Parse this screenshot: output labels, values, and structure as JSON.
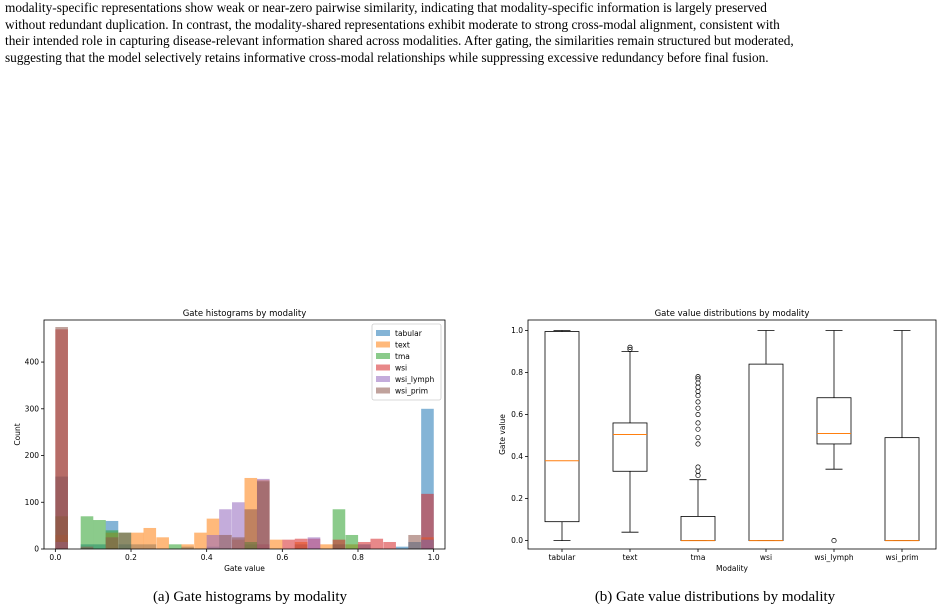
{
  "paragraph_lines": [
    "modality-specific representations show weak or near-zero pairwise similarity, indicating that modality-specific information is largely preserved",
    "without redundant duplication. In contrast, the modality-shared representations exhibit moderate to strong cross-modal alignment, consistent with",
    "their intended role in capturing disease-relevant information shared across modalities. After gating, the similarities remain structured but moderated,",
    "suggesting that the model selectively retains informative cross-modal relationships while suppressing excessive redundancy before final fusion."
  ],
  "captions": {
    "a": "(a) Gate histograms by modality",
    "b": "(b) Gate value distributions by modality"
  },
  "chart_data": [
    {
      "type": "bar",
      "subtype": "overlaid histogram",
      "title": "Gate histograms by modality",
      "xlabel": "Gate value",
      "ylabel": "Count",
      "xlim": [
        -0.03,
        1.03
      ],
      "ylim": [
        0,
        490
      ],
      "xticks": [
        "0.0",
        "0.2",
        "0.4",
        "0.6",
        "0.8",
        "1.0"
      ],
      "yticks": [
        "0",
        "100",
        "200",
        "300",
        "400"
      ],
      "legend_position": "top-right",
      "bin_width": 0.0333,
      "series": [
        {
          "name": "tabular",
          "color": "#1f77b4",
          "bins": [
            [
              0.0,
              155
            ],
            [
              0.067,
              10
            ],
            [
              0.1,
              10
            ],
            [
              0.133,
              60
            ],
            [
              0.167,
              10
            ],
            [
              0.2,
              10
            ],
            [
              0.233,
              10
            ],
            [
              0.333,
              5
            ],
            [
              0.4,
              5
            ],
            [
              0.5,
              10
            ],
            [
              0.633,
              10
            ],
            [
              0.733,
              10
            ],
            [
              0.8,
              10
            ],
            [
              0.9,
              5
            ],
            [
              0.933,
              15
            ],
            [
              0.967,
              300
            ]
          ]
        },
        {
          "name": "text",
          "color": "#ff7f0e",
          "bins": [
            [
              0.0,
              30
            ],
            [
              0.133,
              35
            ],
            [
              0.2,
              35
            ],
            [
              0.233,
              45
            ],
            [
              0.267,
              25
            ],
            [
              0.333,
              10
            ],
            [
              0.367,
              35
            ],
            [
              0.4,
              65
            ],
            [
              0.467,
              20
            ],
            [
              0.5,
              152
            ],
            [
              0.533,
              148
            ],
            [
              0.567,
              20
            ],
            [
              0.633,
              15
            ],
            [
              0.7,
              10
            ],
            [
              0.767,
              10
            ],
            [
              0.967,
              25
            ]
          ]
        },
        {
          "name": "tma",
          "color": "#2ca02c",
          "bins": [
            [
              0.0,
              70
            ],
            [
              0.067,
              70
            ],
            [
              0.1,
              62
            ],
            [
              0.133,
              40
            ],
            [
              0.167,
              35
            ],
            [
              0.3,
              10
            ],
            [
              0.5,
              15
            ],
            [
              0.733,
              85
            ],
            [
              0.767,
              30
            ],
            [
              0.967,
              20
            ]
          ]
        },
        {
          "name": "wsi",
          "color": "#d62728",
          "bins": [
            [
              0.0,
              470
            ],
            [
              0.533,
              10
            ],
            [
              0.6,
              20
            ],
            [
              0.633,
              22
            ],
            [
              0.667,
              22
            ],
            [
              0.733,
              20
            ],
            [
              0.8,
              15
            ],
            [
              0.833,
              22
            ],
            [
              0.867,
              15
            ],
            [
              0.967,
              118
            ]
          ]
        },
        {
          "name": "wsi_lymph",
          "color": "#9467bd",
          "bins": [
            [
              0.0,
              15
            ],
            [
              0.4,
              30
            ],
            [
              0.433,
              85
            ],
            [
              0.467,
              100
            ],
            [
              0.533,
              150
            ],
            [
              0.667,
              25
            ],
            [
              0.967,
              20
            ]
          ]
        },
        {
          "name": "wsi_prim",
          "color": "#8c564b",
          "bins": [
            [
              0.0,
              475
            ],
            [
              0.067,
              5
            ],
            [
              0.133,
              25
            ],
            [
              0.167,
              35
            ],
            [
              0.433,
              30
            ],
            [
              0.467,
              25
            ],
            [
              0.5,
              85
            ],
            [
              0.533,
              145
            ],
            [
              0.933,
              30
            ]
          ]
        }
      ]
    },
    {
      "type": "boxplot",
      "title": "Gate value distributions by modality",
      "xlabel": "Modality",
      "ylabel": "Gate value",
      "ylim": [
        -0.04,
        1.05
      ],
      "yticks": [
        "0.0",
        "0.2",
        "0.4",
        "0.6",
        "0.8",
        "1.0"
      ],
      "categories": [
        "tabular",
        "text",
        "tma",
        "wsi",
        "wsi_lymph",
        "wsi_prim"
      ],
      "boxes": [
        {
          "whisker_low": 0.0,
          "q1": 0.09,
          "median": 0.38,
          "q3": 0.995,
          "whisker_high": 1.0,
          "outliers": []
        },
        {
          "whisker_low": 0.04,
          "q1": 0.33,
          "median": 0.505,
          "q3": 0.56,
          "whisker_high": 0.9,
          "outliers": [
            0.91,
            0.92
          ]
        },
        {
          "whisker_low": 0.0,
          "q1": 0.0,
          "median": 0.0,
          "q3": 0.115,
          "whisker_high": 0.29,
          "outliers": [
            0.31,
            0.33,
            0.35,
            0.46,
            0.49,
            0.53,
            0.56,
            0.6,
            0.63,
            0.66,
            0.69,
            0.71,
            0.73,
            0.75,
            0.77,
            0.78
          ]
        },
        {
          "whisker_low": 0.0,
          "q1": 0.0,
          "median": 0.0,
          "q3": 0.84,
          "whisker_high": 1.0,
          "outliers": []
        },
        {
          "whisker_low": 0.34,
          "q1": 0.46,
          "median": 0.51,
          "q3": 0.68,
          "whisker_high": 1.0,
          "outliers": [
            0.0
          ]
        },
        {
          "whisker_low": 0.0,
          "q1": 0.0,
          "median": 0.0,
          "q3": 0.49,
          "whisker_high": 1.0,
          "outliers": []
        }
      ],
      "median_color": "#ff7f0e"
    }
  ]
}
